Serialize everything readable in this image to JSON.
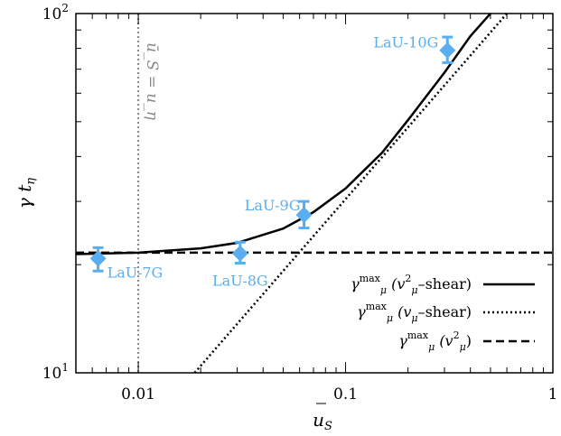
{
  "chart_data": {
    "type": "scatter",
    "xlabel": "ū_S",
    "ylabel": "γ t_η",
    "xscale": "log",
    "yscale": "log",
    "xlim": [
      0.005,
      1
    ],
    "ylim": [
      10,
      100
    ],
    "x_ticks": [
      {
        "value": 0.01,
        "label": "0.01"
      },
      {
        "value": 0.1,
        "label": "0.1"
      },
      {
        "value": 1,
        "label": "1"
      }
    ],
    "y_ticks": [
      {
        "value": 10,
        "label": "10",
        "exp": "1"
      },
      {
        "value": 100,
        "label": "10",
        "exp": "2"
      }
    ],
    "grid": false,
    "legend_position": "bottom-right",
    "reference_line": {
      "x": 0.01,
      "label": "ū_S = u_η",
      "color": "#888888"
    },
    "points": [
      {
        "name": "LaU-7G",
        "x": 0.0064,
        "y": 20.8,
        "err_low": 19.2,
        "err_high": 22.3
      },
      {
        "name": "LaU-8G",
        "x": 0.031,
        "y": 21.5,
        "err_low": 20.2,
        "err_high": 23.1
      },
      {
        "name": "LaU-9G",
        "x": 0.063,
        "y": 27.5,
        "err_low": 25.3,
        "err_high": 30.0
      },
      {
        "name": "LaU-10G",
        "x": 0.31,
        "y": 79,
        "err_low": 73,
        "err_high": 86
      }
    ],
    "point_color": "#5aaef0",
    "series": [
      {
        "name": "γ_μ^max (v_μ²–shear)",
        "style": "solid",
        "x": [
          0.005,
          0.01,
          0.02,
          0.03,
          0.05,
          0.07,
          0.1,
          0.15,
          0.2,
          0.3,
          0.4,
          0.5,
          0.55
        ],
        "y": [
          21.4,
          21.6,
          22.2,
          23.0,
          25.2,
          28.0,
          32.6,
          41.0,
          50.5,
          68.5,
          86.5,
          100,
          108
        ]
      },
      {
        "name": "γ_μ^max (v_μ–shear)",
        "style": "dotted",
        "x": [
          0.0187,
          0.6
        ],
        "y": [
          10,
          100
        ]
      },
      {
        "name": "γ_μ^max (v_μ²)",
        "style": "dashed",
        "x": [
          0.005,
          1
        ],
        "y": [
          21.6,
          21.6
        ]
      }
    ],
    "legend": {
      "entries": [
        {
          "sym": "γ",
          "sub": "μ",
          "sup": "max",
          "arg": "(v",
          "arg_sub": "μ",
          "arg_sup": "2",
          "rest": "–shear)",
          "style": "solid"
        },
        {
          "sym": "γ",
          "sub": "μ",
          "sup": "max",
          "arg": "(v",
          "arg_sub": "μ",
          "arg_sup": "",
          "rest": "–shear)",
          "style": "dotted"
        },
        {
          "sym": "γ",
          "sub": "μ",
          "sup": "max",
          "arg": "(v",
          "arg_sub": "μ",
          "arg_sup": "2",
          "rest": ")",
          "style": "dashed"
        }
      ]
    }
  }
}
